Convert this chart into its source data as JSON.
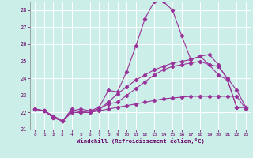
{
  "xlabel": "Windchill (Refroidissement éolien,°C)",
  "background_color": "#cceee8",
  "grid_color": "#ffffff",
  "line_color": "#993399",
  "xlim": [
    -0.5,
    23.5
  ],
  "ylim": [
    21.0,
    28.5
  ],
  "yticks": [
    21,
    22,
    23,
    24,
    25,
    26,
    27,
    28
  ],
  "xticks": [
    0,
    1,
    2,
    3,
    4,
    5,
    6,
    7,
    8,
    9,
    10,
    11,
    12,
    13,
    14,
    15,
    16,
    17,
    18,
    19,
    20,
    21,
    22,
    23
  ],
  "line1_x": [
    0,
    1,
    2,
    3,
    4,
    5,
    6,
    7,
    8,
    9,
    10,
    11,
    12,
    13,
    14,
    15,
    16,
    17,
    18,
    19,
    20,
    21,
    22,
    23
  ],
  "line1_y": [
    22.2,
    22.1,
    21.7,
    21.5,
    22.0,
    22.0,
    22.0,
    22.1,
    22.2,
    22.3,
    22.4,
    22.5,
    22.6,
    22.7,
    22.8,
    22.85,
    22.9,
    22.95,
    22.95,
    22.95,
    22.95,
    22.95,
    22.95,
    22.2
  ],
  "line2_x": [
    0,
    1,
    2,
    3,
    4,
    5,
    6,
    7,
    8,
    9,
    10,
    11,
    12,
    13,
    14,
    15,
    16,
    17,
    18,
    19,
    20,
    21,
    22,
    23
  ],
  "line2_y": [
    22.2,
    22.1,
    21.7,
    21.5,
    22.1,
    22.2,
    22.1,
    22.2,
    22.5,
    22.6,
    23.0,
    23.4,
    23.8,
    24.2,
    24.5,
    24.7,
    24.8,
    24.9,
    25.0,
    24.8,
    24.7,
    24.0,
    23.3,
    22.3
  ],
  "line3_x": [
    0,
    1,
    2,
    3,
    4,
    5,
    6,
    7,
    8,
    9,
    10,
    11,
    12,
    13,
    14,
    15,
    16,
    17,
    18,
    19,
    20,
    21,
    22,
    23
  ],
  "line3_y": [
    22.2,
    22.1,
    21.8,
    21.5,
    22.2,
    22.0,
    22.1,
    22.3,
    23.3,
    23.2,
    24.4,
    25.9,
    27.5,
    28.5,
    28.5,
    28.0,
    26.5,
    25.1,
    25.3,
    25.4,
    24.8,
    23.9,
    22.3,
    22.3
  ],
  "line4_x": [
    0,
    1,
    2,
    3,
    4,
    5,
    6,
    7,
    8,
    9,
    10,
    11,
    12,
    13,
    14,
    15,
    16,
    17,
    18,
    19,
    20,
    21,
    22,
    23
  ],
  "line4_y": [
    22.2,
    22.1,
    21.8,
    21.5,
    22.0,
    22.0,
    22.0,
    22.2,
    22.6,
    23.1,
    23.5,
    23.9,
    24.2,
    24.5,
    24.7,
    24.9,
    25.0,
    25.1,
    25.3,
    24.8,
    24.2,
    23.9,
    22.3,
    22.3
  ]
}
